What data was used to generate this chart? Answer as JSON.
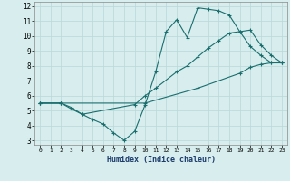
{
  "xlabel": "Humidex (Indice chaleur)",
  "bg_color": "#d8eeee",
  "grid_color": "#b8d8d8",
  "line_color": "#1a6e6e",
  "xlim": [
    -0.5,
    23.5
  ],
  "ylim": [
    2.7,
    12.3
  ],
  "xticks": [
    0,
    1,
    2,
    3,
    4,
    5,
    6,
    7,
    8,
    9,
    10,
    11,
    12,
    13,
    14,
    15,
    16,
    17,
    18,
    19,
    20,
    21,
    22,
    23
  ],
  "yticks": [
    3,
    4,
    5,
    6,
    7,
    8,
    9,
    10,
    11,
    12
  ],
  "line1_x": [
    0,
    2,
    3,
    4,
    5,
    6,
    7,
    8,
    9,
    10,
    11,
    12,
    13,
    14,
    15,
    16,
    17,
    18,
    19,
    20,
    21,
    22,
    23
  ],
  "line1_y": [
    5.5,
    5.5,
    5.2,
    4.75,
    4.4,
    4.1,
    3.5,
    3.0,
    3.6,
    5.4,
    7.6,
    10.3,
    11.1,
    9.9,
    11.9,
    11.8,
    11.7,
    11.4,
    10.3,
    9.3,
    8.7,
    8.2,
    8.2
  ],
  "line2_x": [
    0,
    2,
    3,
    4,
    9,
    10,
    11,
    13,
    14,
    15,
    16,
    17,
    18,
    19,
    20,
    21,
    22,
    23
  ],
  "line2_y": [
    5.5,
    5.5,
    5.1,
    4.75,
    5.4,
    6.0,
    6.5,
    7.6,
    8.0,
    8.6,
    9.2,
    9.7,
    10.2,
    10.3,
    10.4,
    9.4,
    8.7,
    8.2
  ],
  "line3_x": [
    0,
    2,
    10,
    15,
    19,
    20,
    21,
    22,
    23
  ],
  "line3_y": [
    5.5,
    5.5,
    5.5,
    6.5,
    7.5,
    7.9,
    8.1,
    8.2,
    8.2
  ]
}
